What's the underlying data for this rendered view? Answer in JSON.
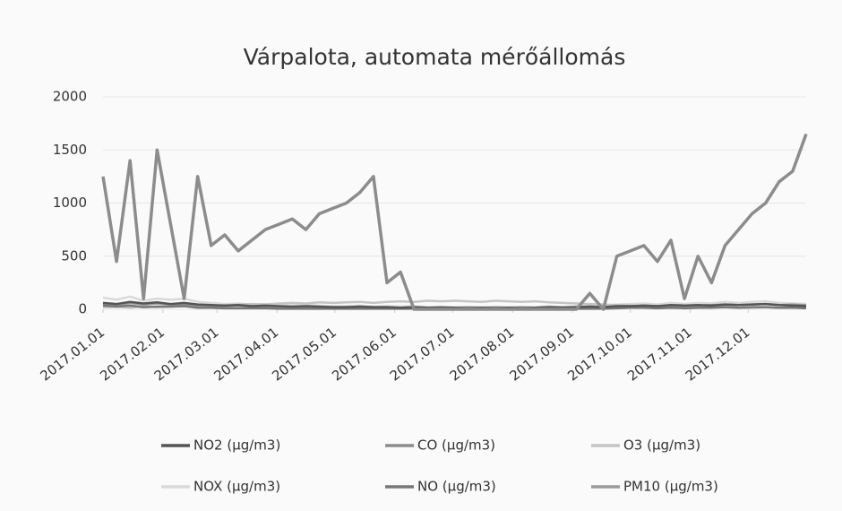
{
  "chart_data": {
    "type": "line",
    "title": "Várpalota, automata mérőállomás",
    "x": [
      "2017.01.01",
      "2017.01.08",
      "2017.01.15",
      "2017.01.22",
      "2017.01.29",
      "2017.02.05",
      "2017.02.12",
      "2017.02.19",
      "2017.02.26",
      "2017.03.05",
      "2017.03.12",
      "2017.03.19",
      "2017.03.26",
      "2017.04.02",
      "2017.04.09",
      "2017.04.16",
      "2017.04.23",
      "2017.04.30",
      "2017.05.07",
      "2017.05.14",
      "2017.05.21",
      "2017.05.28",
      "2017.06.04",
      "2017.06.11",
      "2017.06.18",
      "2017.06.25",
      "2017.07.02",
      "2017.07.09",
      "2017.07.16",
      "2017.07.23",
      "2017.07.30",
      "2017.08.06",
      "2017.08.13",
      "2017.08.20",
      "2017.08.27",
      "2017.09.03",
      "2017.09.10",
      "2017.09.17",
      "2017.09.24",
      "2017.10.01",
      "2017.10.08",
      "2017.10.15",
      "2017.10.22",
      "2017.10.29",
      "2017.11.05",
      "2017.11.12",
      "2017.11.19",
      "2017.11.26",
      "2017.12.03",
      "2017.12.10",
      "2017.12.17",
      "2017.12.24",
      "2017.12.31"
    ],
    "series": [
      {
        "name": "NO2 (µg/m3)",
        "color": "#555555",
        "values": [
          60,
          50,
          70,
          55,
          65,
          50,
          60,
          45,
          40,
          35,
          40,
          30,
          35,
          30,
          25,
          30,
          25,
          20,
          20,
          25,
          20,
          20,
          15,
          20,
          15,
          15,
          15,
          10,
          15,
          10,
          15,
          10,
          15,
          20,
          15,
          20,
          25,
          20,
          30,
          30,
          35,
          30,
          40,
          35,
          40,
          35,
          45,
          40,
          45,
          50,
          40,
          35,
          30
        ]
      },
      {
        "name": "CO (µg/m3)",
        "color": "#8c8c8c",
        "values": [
          1250,
          450,
          1400,
          100,
          1500,
          800,
          100,
          1250,
          600,
          700,
          550,
          650,
          750,
          800,
          850,
          750,
          900,
          950,
          1000,
          1100,
          1250,
          250,
          350,
          0,
          0,
          0,
          0,
          0,
          0,
          0,
          0,
          0,
          0,
          0,
          0,
          0,
          150,
          0,
          500,
          550,
          600,
          450,
          650,
          100,
          500,
          250,
          600,
          750,
          900,
          1000,
          1200,
          1300,
          1650
        ]
      },
      {
        "name": "O3 (µg/m3)",
        "color": "#c4c4c4",
        "values": [
          20,
          25,
          15,
          30,
          20,
          25,
          30,
          20,
          30,
          40,
          45,
          50,
          45,
          55,
          60,
          55,
          65,
          60,
          65,
          70,
          60,
          70,
          75,
          70,
          80,
          75,
          80,
          75,
          70,
          80,
          75,
          70,
          75,
          65,
          60,
          55,
          50,
          45,
          40,
          35,
          30,
          30,
          25,
          25,
          20,
          20,
          25,
          15,
          15,
          20,
          15,
          20,
          15
        ]
      },
      {
        "name": "NOX (µg/m3)",
        "color": "#d9d9d9",
        "values": [
          110,
          90,
          120,
          80,
          100,
          90,
          100,
          70,
          60,
          50,
          55,
          45,
          50,
          40,
          35,
          40,
          35,
          30,
          30,
          35,
          25,
          30,
          25,
          30,
          20,
          25,
          20,
          15,
          20,
          15,
          20,
          15,
          20,
          30,
          20,
          30,
          35,
          30,
          45,
          50,
          55,
          45,
          60,
          50,
          60,
          55,
          70,
          60,
          70,
          75,
          60,
          55,
          50
        ]
      },
      {
        "name": "NO (µg/m3)",
        "color": "#777777",
        "values": [
          35,
          25,
          35,
          20,
          25,
          25,
          30,
          15,
          15,
          10,
          10,
          10,
          10,
          5,
          5,
          5,
          5,
          5,
          5,
          5,
          5,
          5,
          5,
          5,
          5,
          5,
          5,
          5,
          5,
          5,
          5,
          5,
          5,
          5,
          5,
          5,
          5,
          5,
          10,
          15,
          15,
          10,
          15,
          10,
          15,
          15,
          20,
          15,
          20,
          20,
          15,
          15,
          10
        ]
      },
      {
        "name": "PM10 (µg/m3)",
        "color": "#9a9a9a",
        "values": [
          50,
          40,
          60,
          45,
          55,
          45,
          50,
          35,
          30,
          30,
          35,
          25,
          30,
          25,
          20,
          25,
          20,
          20,
          20,
          25,
          20,
          20,
          15,
          20,
          15,
          20,
          15,
          20,
          15,
          20,
          15,
          20,
          15,
          20,
          20,
          20,
          25,
          20,
          30,
          30,
          35,
          30,
          35,
          30,
          35,
          40,
          45,
          40,
          45,
          50,
          40,
          45,
          40
        ]
      }
    ],
    "xlim": [
      "2017.01.01",
      "2017.12.31"
    ],
    "xticks": [
      "2017.01.01",
      "2017.02.01",
      "2017.03.01",
      "2017.04.01",
      "2017.05.01",
      "2017.06.01",
      "2017.07.01",
      "2017.08.01",
      "2017.09.01",
      "2017.10.01",
      "2017.11.01",
      "2017.12.01"
    ],
    "ylim": [
      0,
      2000
    ],
    "yticks": [
      0,
      500,
      1000,
      1500,
      2000
    ],
    "grid": true,
    "legend": "bottom"
  }
}
